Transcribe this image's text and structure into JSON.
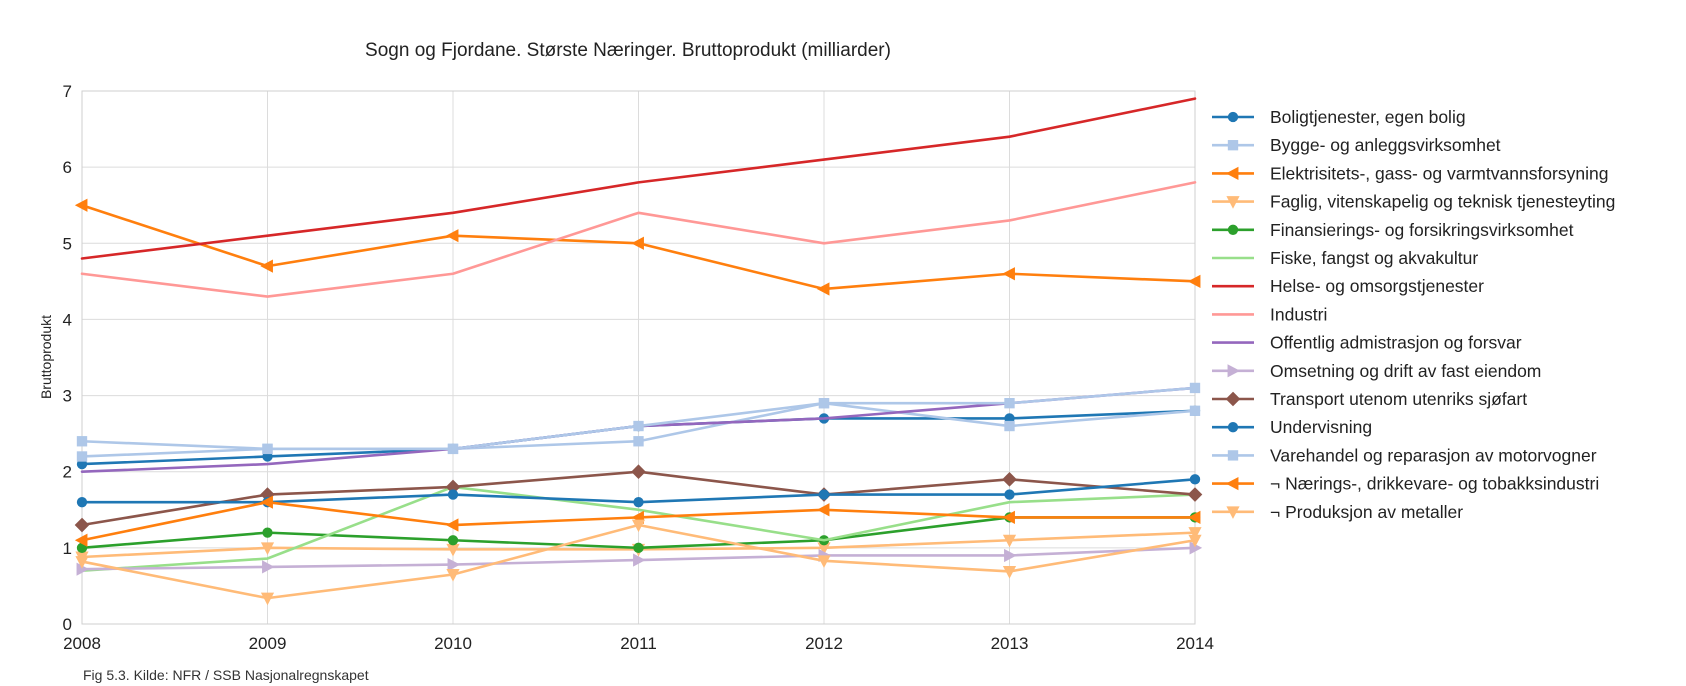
{
  "chart_data": {
    "type": "line",
    "title": "Sogn og Fjordane. Største Næringer. Bruttoprodukt (milliarder)",
    "xlabel": "",
    "ylabel": "Bruttoprodukt",
    "caption": "Fig 5.3. Kilde: NFR / SSB Nasjonalregnskapet",
    "x": [
      2008,
      2009,
      2010,
      2011,
      2012,
      2013,
      2014
    ],
    "x_tick_labels": [
      "2008",
      "2009",
      "2010",
      "2011",
      "2012",
      "2013",
      "2014"
    ],
    "y_tick_labels": [
      "0",
      "1",
      "2",
      "3",
      "4",
      "5",
      "6",
      "7"
    ],
    "xlim": [
      2008,
      2014
    ],
    "ylim": [
      0,
      7
    ],
    "grid": true,
    "legend_position": "right",
    "series": [
      {
        "name": "Boligtjenester, egen bolig",
        "color": "#1f77b4",
        "marker": "circle",
        "values": [
          2.1,
          2.2,
          2.3,
          2.6,
          2.7,
          2.7,
          2.8
        ]
      },
      {
        "name": "Bygge- og anleggsvirksomhet",
        "color": "#aec7e8",
        "marker": "square",
        "values": [
          2.4,
          2.3,
          2.3,
          2.4,
          2.9,
          2.6,
          2.8
        ]
      },
      {
        "name": "Elektrisitets-, gass- og varmtvannsforsyning",
        "color": "#ff7f0e",
        "marker": "triangle-left",
        "values": [
          5.5,
          4.7,
          5.1,
          5.0,
          4.4,
          4.6,
          4.5
        ]
      },
      {
        "name": "Faglig, vitenskapelig og teknisk tjenesteyting",
        "color": "#ffbb78",
        "marker": "triangle-down",
        "values": [
          0.88,
          1.0,
          0.98,
          0.98,
          1.0,
          1.1,
          1.2
        ]
      },
      {
        "name": "Finansierings- og forsikringsvirksomhet",
        "color": "#2ca02c",
        "marker": "circle",
        "values": [
          1.0,
          1.2,
          1.1,
          1.0,
          1.1,
          1.4,
          1.4
        ]
      },
      {
        "name": "Fiske, fangst og akvakultur",
        "color": "#98df8a",
        "marker": "none",
        "values": [
          0.7,
          0.86,
          1.8,
          1.5,
          1.1,
          1.6,
          1.7
        ]
      },
      {
        "name": "Helse- og omsorgstjenester",
        "color": "#d62728",
        "marker": "none",
        "values": [
          4.8,
          5.1,
          5.4,
          5.8,
          6.1,
          6.4,
          6.9
        ]
      },
      {
        "name": "Industri",
        "color": "#ff9896",
        "marker": "none",
        "values": [
          4.6,
          4.3,
          4.6,
          5.4,
          5.0,
          5.3,
          5.8
        ]
      },
      {
        "name": "Offentlig admistrasjon og forsvar",
        "color": "#9467bd",
        "marker": "none",
        "values": [
          2.0,
          2.1,
          2.3,
          2.6,
          2.7,
          2.9,
          3.1
        ]
      },
      {
        "name": "Omsetning og drift av fast eiendom",
        "color": "#c5b0d5",
        "marker": "triangle-right",
        "values": [
          0.72,
          0.75,
          0.78,
          0.84,
          0.9,
          0.9,
          1.0
        ]
      },
      {
        "name": "Transport utenom utenriks sjøfart",
        "color": "#8c564b",
        "marker": "diamond",
        "values": [
          1.3,
          1.7,
          1.8,
          2.0,
          1.7,
          1.9,
          1.7
        ]
      },
      {
        "name": "Undervisning",
        "color": "#1f77b4",
        "marker": "circle",
        "values": [
          1.6,
          1.6,
          1.7,
          1.6,
          1.7,
          1.7,
          1.9
        ]
      },
      {
        "name": "Varehandel og reparasjon av motorvogner",
        "color": "#aec7e8",
        "marker": "square",
        "values": [
          2.2,
          2.3,
          2.3,
          2.6,
          2.9,
          2.9,
          3.1
        ]
      },
      {
        "name": "¬ Nærings-, drikkevare- og tobakksindustri",
        "color": "#ff7f0e",
        "marker": "triangle-left",
        "values": [
          1.1,
          1.6,
          1.3,
          1.4,
          1.5,
          1.4,
          1.4
        ]
      },
      {
        "name": "¬ Produksjon av metaller",
        "color": "#ffbb78",
        "marker": "triangle-down",
        "values": [
          0.82,
          0.34,
          0.65,
          1.3,
          0.83,
          0.69,
          1.1
        ]
      }
    ]
  }
}
